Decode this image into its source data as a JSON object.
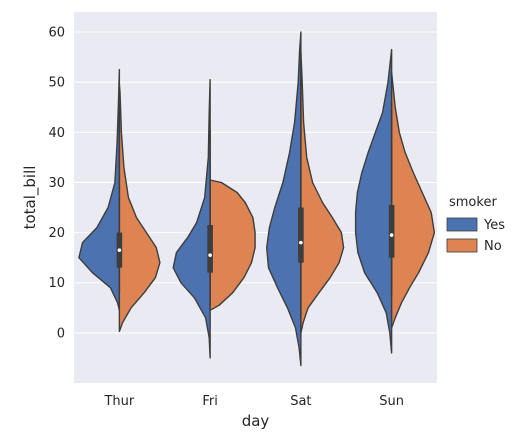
{
  "chart_data": {
    "type": "violin",
    "split": true,
    "xlabel": "day",
    "ylabel": "total_bill",
    "ylim": [
      -10,
      64
    ],
    "yticks": [
      0,
      10,
      20,
      30,
      40,
      50,
      60
    ],
    "grid": true,
    "categories": [
      "Thur",
      "Fri",
      "Sat",
      "Sun"
    ],
    "hue": "smoker",
    "legend": {
      "title": "smoker",
      "placement": "right",
      "entries": [
        {
          "label": "Yes",
          "color": "#4c72b0"
        },
        {
          "label": "No",
          "color": "#dd8452"
        }
      ]
    },
    "groups": [
      {
        "day": "Thur",
        "box": {
          "q1": 13,
          "median": 16.5,
          "q3": 20,
          "whisker_low": 8,
          "whisker_high": 43
        },
        "yes": [
          [
            4.5,
            0
          ],
          [
            6,
            0.04
          ],
          [
            9,
            0.2
          ],
          [
            12,
            0.6
          ],
          [
            15,
            0.9
          ],
          [
            18,
            0.82
          ],
          [
            21,
            0.5
          ],
          [
            25,
            0.25
          ],
          [
            30,
            0.1
          ],
          [
            38,
            0.05
          ],
          [
            45,
            0.025
          ],
          [
            52.5,
            0
          ]
        ],
        "no": [
          [
            0.3,
            0
          ],
          [
            2,
            0.07
          ],
          [
            5,
            0.26
          ],
          [
            8,
            0.55
          ],
          [
            11,
            0.8
          ],
          [
            14,
            0.9
          ],
          [
            17,
            0.82
          ],
          [
            20,
            0.6
          ],
          [
            23,
            0.38
          ],
          [
            27,
            0.2
          ],
          [
            33,
            0.1
          ],
          [
            40,
            0.045
          ],
          [
            48,
            0.015
          ],
          [
            49.5,
            0
          ]
        ]
      },
      {
        "day": "Fri",
        "box": {
          "q1": 12,
          "median": 15.5,
          "q3": 21.5,
          "whisker_low": 5.5,
          "whisker_high": 40.5
        },
        "yes": [
          [
            -5,
            0
          ],
          [
            -1,
            0.02
          ],
          [
            3,
            0.1
          ],
          [
            7,
            0.35
          ],
          [
            10,
            0.65
          ],
          [
            13,
            0.82
          ],
          [
            16,
            0.75
          ],
          [
            19,
            0.5
          ],
          [
            22,
            0.3
          ],
          [
            27,
            0.12
          ],
          [
            35,
            0.04
          ],
          [
            44,
            0.02
          ],
          [
            50.5,
            0
          ]
        ],
        "no": [
          [
            4.5,
            0
          ],
          [
            5.5,
            0.2
          ],
          [
            8,
            0.5
          ],
          [
            11,
            0.75
          ],
          [
            14,
            0.92
          ],
          [
            17,
            1.0
          ],
          [
            20,
            1.0
          ],
          [
            23,
            0.95
          ],
          [
            26,
            0.78
          ],
          [
            28,
            0.6
          ],
          [
            30,
            0.25
          ],
          [
            30.5,
            0
          ]
        ]
      },
      {
        "day": "Sat",
        "box": {
          "q1": 14,
          "median": 18,
          "q3": 25,
          "whisker_low": 3,
          "whisker_high": 48
        },
        "yes": [
          [
            -6.5,
            0
          ],
          [
            -3,
            0.04
          ],
          [
            1,
            0.12
          ],
          [
            5,
            0.3
          ],
          [
            9,
            0.52
          ],
          [
            13,
            0.72
          ],
          [
            17,
            0.76
          ],
          [
            21,
            0.7
          ],
          [
            25,
            0.58
          ],
          [
            30,
            0.4
          ],
          [
            36,
            0.25
          ],
          [
            42,
            0.14
          ],
          [
            50,
            0.06
          ],
          [
            56,
            0.03
          ],
          [
            60,
            0
          ]
        ],
        "no": [
          [
            0,
            0
          ],
          [
            2,
            0.05
          ],
          [
            5,
            0.16
          ],
          [
            8,
            0.4
          ],
          [
            11,
            0.65
          ],
          [
            14,
            0.85
          ],
          [
            17,
            0.95
          ],
          [
            20,
            0.9
          ],
          [
            23,
            0.7
          ],
          [
            26,
            0.48
          ],
          [
            30,
            0.26
          ],
          [
            35,
            0.13
          ],
          [
            42,
            0.06
          ],
          [
            50,
            0.03
          ],
          [
            56,
            0
          ]
        ]
      },
      {
        "day": "Sun",
        "box": {
          "q1": 15,
          "median": 19.5,
          "q3": 25.5,
          "whisker_low": 7.5,
          "whisker_high": 46
        },
        "yes": [
          [
            -4,
            0
          ],
          [
            0,
            0.04
          ],
          [
            4,
            0.12
          ],
          [
            8,
            0.32
          ],
          [
            12,
            0.6
          ],
          [
            16,
            0.75
          ],
          [
            20,
            0.8
          ],
          [
            24,
            0.8
          ],
          [
            28,
            0.76
          ],
          [
            32,
            0.66
          ],
          [
            36,
            0.52
          ],
          [
            40,
            0.36
          ],
          [
            44,
            0.2
          ],
          [
            50,
            0.08
          ],
          [
            56.5,
            0
          ]
        ],
        "no": [
          [
            1,
            0
          ],
          [
            3,
            0.08
          ],
          [
            6,
            0.22
          ],
          [
            9,
            0.4
          ],
          [
            12,
            0.6
          ],
          [
            16,
            0.82
          ],
          [
            20,
            0.95
          ],
          [
            24,
            0.88
          ],
          [
            28,
            0.68
          ],
          [
            32,
            0.48
          ],
          [
            36,
            0.3
          ],
          [
            40,
            0.17
          ],
          [
            45,
            0.08
          ],
          [
            52,
            0
          ]
        ]
      }
    ]
  }
}
